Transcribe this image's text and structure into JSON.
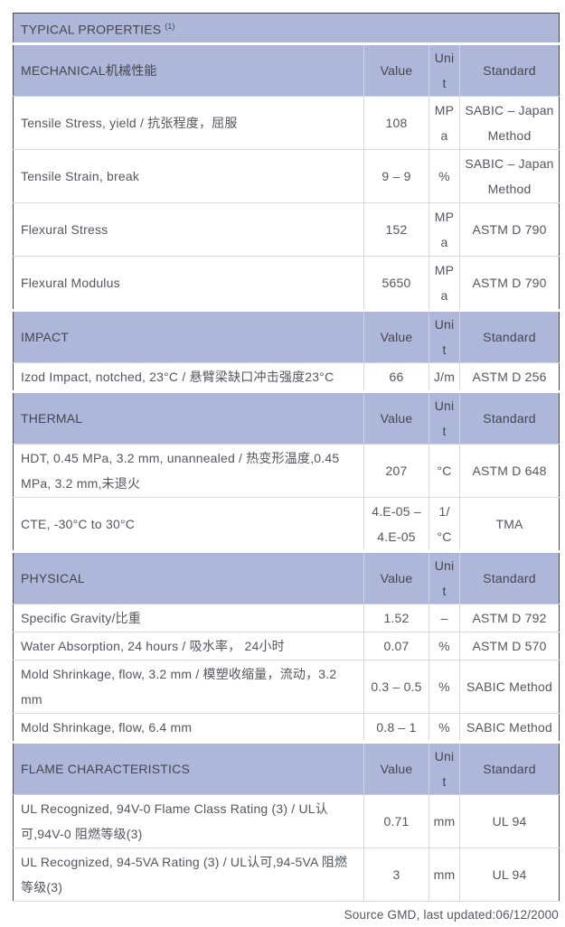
{
  "table": {
    "title": "TYPICAL PROPERTIES",
    "title_superscript": "(1)",
    "columns": [
      "Value",
      "Unit",
      "Standard"
    ],
    "sections": [
      {
        "header": "MECHANICAL机械性能",
        "rows": [
          {
            "property": "Tensile Stress, yield / 抗张程度，屈服",
            "value": "108",
            "unit": "MPa",
            "standard": "SABIC – Japan Method"
          },
          {
            "property": "Tensile Strain, break",
            "value": "9 – 9",
            "unit": "%",
            "standard": "SABIC – Japan Method"
          },
          {
            "property": "Flexural Stress",
            "value": "152",
            "unit": "MPa",
            "standard": "ASTM D 790"
          },
          {
            "property": "Flexural Modulus",
            "value": "5650",
            "unit": "MPa",
            "standard": "ASTM D 790"
          }
        ]
      },
      {
        "header": "IMPACT",
        "rows": [
          {
            "property": "Izod Impact, notched, 23°C / 悬臂梁缺口冲击强度23°C",
            "value": "66",
            "unit": "J/m",
            "standard": "ASTM D 256"
          }
        ]
      },
      {
        "header": "THERMAL",
        "rows": [
          {
            "property": "HDT, 0.45 MPa, 3.2 mm, unannealed / 热变形温度,0.45 MPa, 3.2 mm,未退火",
            "value": "207",
            "unit": "°C",
            "standard": "ASTM D 648"
          },
          {
            "property": "CTE, -30°C to 30°C",
            "value": "4.E-05 – 4.E-05",
            "unit": "1/°C",
            "standard": "TMA"
          }
        ]
      },
      {
        "header": "PHYSICAL",
        "rows": [
          {
            "property": "Specific Gravity/比重",
            "value": "1.52",
            "unit": "–",
            "standard": "ASTM D 792"
          },
          {
            "property": "Water Absorption, 24 hours / 吸水率， 24小时",
            "value": "0.07",
            "unit": "%",
            "standard": "ASTM D 570"
          },
          {
            "property": "Mold Shrinkage, flow, 3.2 mm / 模塑收缩量，流动，3.2 mm",
            "value": "0.3 – 0.5",
            "unit": "%",
            "standard": "SABIC Method"
          },
          {
            "property": "Mold Shrinkage, flow, 6.4 mm",
            "value": "0.8 – 1",
            "unit": "%",
            "standard": "SABIC Method"
          }
        ]
      },
      {
        "header": "FLAME CHARACTERISTICS",
        "rows": [
          {
            "property": "UL Recognized, 94V-0 Flame Class Rating (3) / UL认可,94V-0 阻燃等级(3)",
            "value": "0.71",
            "unit": "mm",
            "standard": "UL 94"
          },
          {
            "property": "UL Recognized, 94-5VA Rating (3) / UL认可,94-5VA 阻燃等级(3)",
            "value": "3",
            "unit": "mm",
            "standard": "UL 94"
          }
        ]
      }
    ]
  },
  "footer": "Source GMD, last updated:06/12/2000",
  "colors": {
    "header_band_bg": "#aeb6da",
    "header_band_text": "#45464d",
    "body_text": "#55565e",
    "row_divider": "#dadadd",
    "outer_border": "#47484e",
    "page_bg": "#ffffff"
  }
}
